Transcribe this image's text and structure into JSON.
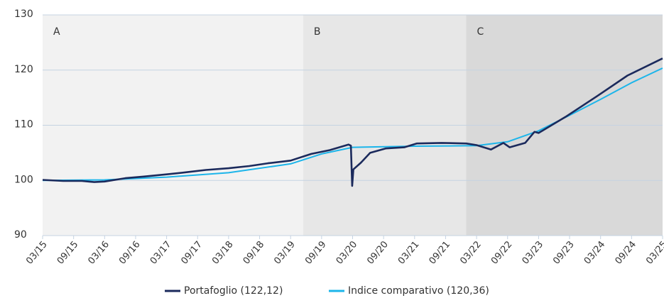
{
  "chart_data": {
    "type": "line",
    "regions": [
      {
        "label": "A",
        "x_start": 2015.167,
        "x_end": 2019.37,
        "color": "#f2f2f2"
      },
      {
        "label": "B",
        "x_start": 2019.37,
        "x_end": 2022.0,
        "color": "#e7e7e7"
      },
      {
        "label": "C",
        "x_start": 2022.0,
        "x_end": 2025.167,
        "color": "#d9d9d9"
      }
    ],
    "xlim": [
      2015.167,
      2025.167
    ],
    "xticks": [
      {
        "value": 2015.167,
        "label": "03/15"
      },
      {
        "value": 2015.667,
        "label": "09/15"
      },
      {
        "value": 2016.167,
        "label": "03/16"
      },
      {
        "value": 2016.667,
        "label": "09/16"
      },
      {
        "value": 2017.167,
        "label": "03/17"
      },
      {
        "value": 2017.667,
        "label": "09/17"
      },
      {
        "value": 2018.167,
        "label": "03/18"
      },
      {
        "value": 2018.667,
        "label": "09/18"
      },
      {
        "value": 2019.167,
        "label": "03/19"
      },
      {
        "value": 2019.667,
        "label": "09/19"
      },
      {
        "value": 2020.167,
        "label": "03/20"
      },
      {
        "value": 2020.667,
        "label": "09/20"
      },
      {
        "value": 2021.167,
        "label": "03/21"
      },
      {
        "value": 2021.667,
        "label": "09/21"
      },
      {
        "value": 2022.167,
        "label": "03/22"
      },
      {
        "value": 2022.667,
        "label": "09/22"
      },
      {
        "value": 2023.167,
        "label": "03/23"
      },
      {
        "value": 2023.667,
        "label": "09/23"
      },
      {
        "value": 2024.167,
        "label": "03/24"
      },
      {
        "value": 2024.667,
        "label": "09/24"
      },
      {
        "value": 2025.167,
        "label": "03/25"
      }
    ],
    "ylim": [
      90,
      130
    ],
    "yticks": [
      90,
      100,
      110,
      120,
      130
    ],
    "grid": true,
    "legend": "bottom",
    "series": [
      {
        "name": "Indice comparativo (120,36)",
        "color": "#1cb5ea",
        "x": [
          2015.167,
          2016.167,
          2017.167,
          2018.167,
          2019.167,
          2019.667,
          2020.167,
          2021.167,
          2022.167,
          2022.667,
          2023.167,
          2023.667,
          2024.167,
          2024.667,
          2025.167
        ],
        "values": [
          100.0,
          100.1,
          100.6,
          101.4,
          103.0,
          104.8,
          106.0,
          106.2,
          106.3,
          107.0,
          109.0,
          111.8,
          114.7,
          117.7,
          120.36
        ]
      },
      {
        "name": "Portafoglio (122,12)",
        "color": "#1b2a5c",
        "x": [
          2015.167,
          2015.5,
          2015.8,
          2016.0,
          2016.167,
          2016.5,
          2016.8,
          2017.167,
          2017.5,
          2017.8,
          2018.167,
          2018.5,
          2018.8,
          2019.167,
          2019.5,
          2019.8,
          2019.95,
          2020.1,
          2020.14,
          2020.16,
          2020.18,
          2020.3,
          2020.45,
          2020.7,
          2021.0,
          2021.2,
          2021.6,
          2022.0,
          2022.167,
          2022.4,
          2022.6,
          2022.7,
          2022.95,
          2023.1,
          2023.167,
          2023.6,
          2024.1,
          2024.6,
          2025.167
        ],
        "values": [
          100.1,
          99.9,
          99.9,
          99.7,
          99.8,
          100.4,
          100.7,
          101.1,
          101.5,
          101.9,
          102.2,
          102.6,
          103.1,
          103.6,
          104.8,
          105.5,
          106.0,
          106.5,
          106.3,
          99.0,
          102.0,
          103.2,
          105.0,
          105.8,
          106.0,
          106.7,
          106.8,
          106.7,
          106.4,
          105.6,
          106.8,
          106.0,
          106.8,
          108.8,
          108.6,
          111.5,
          115.2,
          119.0,
          122.12
        ]
      }
    ]
  }
}
